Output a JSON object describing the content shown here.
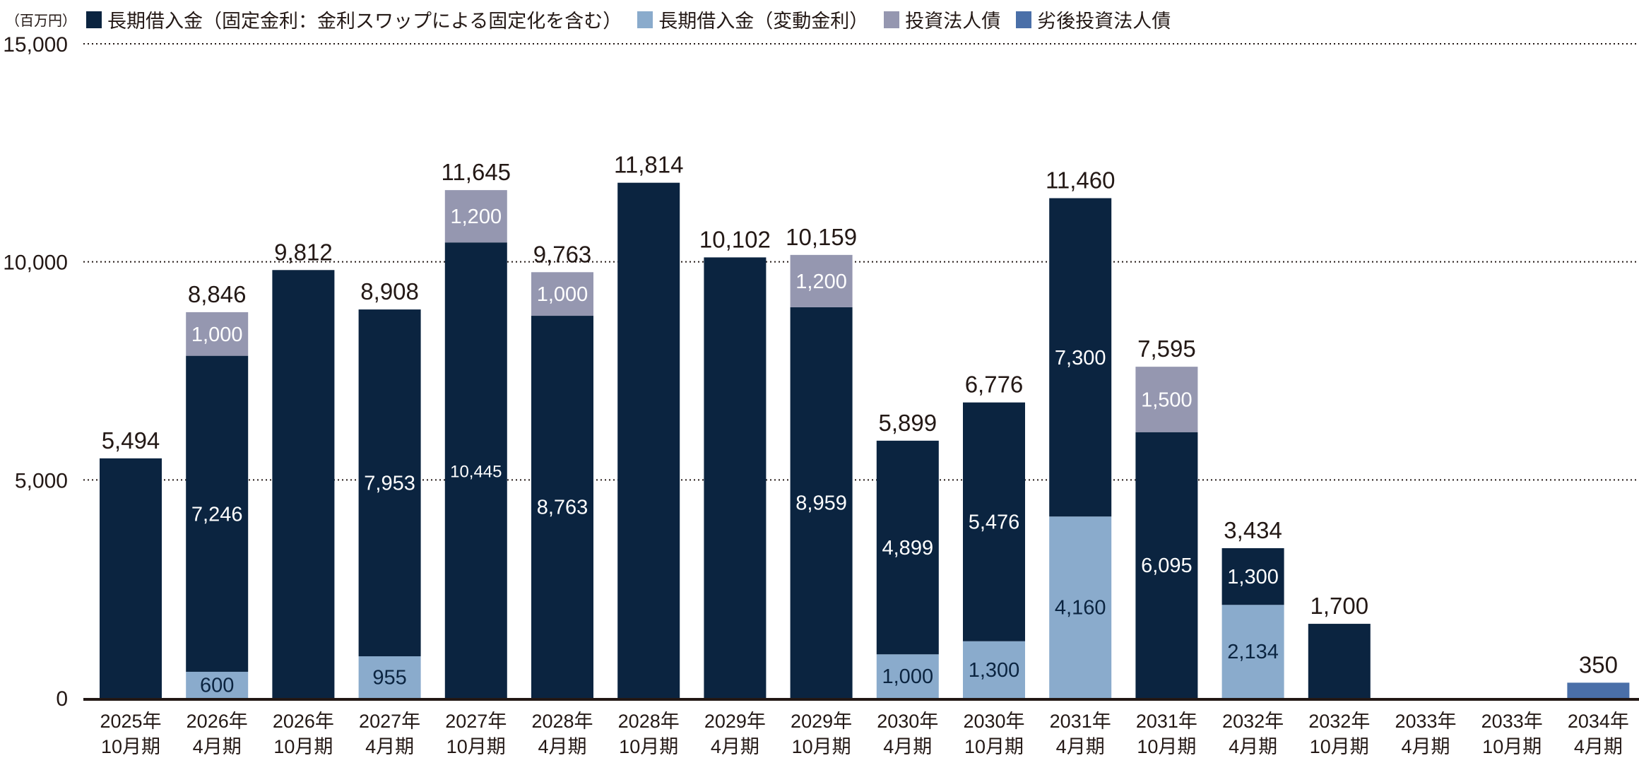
{
  "chart_data": {
    "type": "bar",
    "stacked": true,
    "unit_label": "（百万円）",
    "categories": [
      [
        "2025年",
        "10月期"
      ],
      [
        "2026年",
        "4月期"
      ],
      [
        "2026年",
        "10月期"
      ],
      [
        "2027年",
        "4月期"
      ],
      [
        "2027年",
        "10月期"
      ],
      [
        "2028年",
        "4月期"
      ],
      [
        "2028年",
        "10月期"
      ],
      [
        "2029年",
        "4月期"
      ],
      [
        "2029年",
        "10月期"
      ],
      [
        "2030年",
        "4月期"
      ],
      [
        "2030年",
        "10月期"
      ],
      [
        "2031年",
        "4月期"
      ],
      [
        "2031年",
        "10月期"
      ],
      [
        "2032年",
        "4月期"
      ],
      [
        "2032年",
        "10月期"
      ],
      [
        "2033年",
        "4月期"
      ],
      [
        "2033年",
        "10月期"
      ],
      [
        "2034年",
        "4月期"
      ]
    ],
    "series": [
      {
        "name": "長期借入金（変動金利）",
        "color": "#8aabcc",
        "label_color": "#0b2440",
        "values": [
          0,
          600,
          0,
          955,
          0,
          0,
          0,
          0,
          0,
          1000,
          1300,
          4160,
          0,
          2134,
          0,
          0,
          0,
          0
        ]
      },
      {
        "name": "長期借入金（固定金利：金利スワップによる固定化を含む）",
        "color": "#0b2440",
        "label_color": "#ffffff",
        "values": [
          5494,
          7246,
          9812,
          7953,
          10445,
          8763,
          11814,
          10102,
          8959,
          4899,
          5476,
          7300,
          6095,
          1300,
          1700,
          0,
          0,
          0
        ]
      },
      {
        "name": "投資法人債",
        "color": "#9597b0",
        "label_color": "#ffffff",
        "values": [
          0,
          1000,
          0,
          0,
          1200,
          1000,
          0,
          0,
          1200,
          0,
          0,
          0,
          1500,
          0,
          0,
          0,
          0,
          0
        ]
      },
      {
        "name": "劣後投資法人債",
        "color": "#4a6fa8",
        "label_color": "#ffffff",
        "values": [
          0,
          0,
          0,
          0,
          0,
          0,
          0,
          0,
          0,
          0,
          0,
          0,
          0,
          0,
          0,
          0,
          0,
          350
        ]
      }
    ],
    "legend_order": [
      1,
      0,
      2,
      3
    ],
    "totals": [
      5494,
      8846,
      9812,
      8908,
      11645,
      9763,
      11814,
      10102,
      10159,
      5899,
      6776,
      11460,
      7595,
      3434,
      1700,
      0,
      0,
      350
    ],
    "ylim": [
      0,
      15000
    ],
    "yticks": [
      0,
      5000,
      10000,
      15000
    ],
    "ytick_labels": [
      "0",
      "5,000",
      "10,000",
      "15,000"
    ],
    "grid": "dotted",
    "legend_position": "top-left"
  }
}
